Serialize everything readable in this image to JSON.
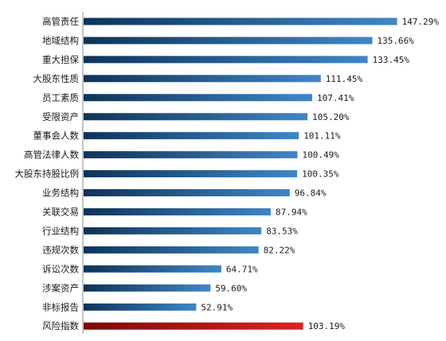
{
  "chart_data": {
    "type": "bar",
    "orientation": "horizontal",
    "categories": [
      "高管责任",
      "地域结构",
      "重大担保",
      "大股东性质",
      "员工素质",
      "受限资产",
      "董事会人数",
      "高管法律人数",
      "大股东持股比例",
      "业务结构",
      "关联交易",
      "行业结构",
      "违规次数",
      "诉讼次数",
      "涉案资产",
      "非标报告",
      "风险指数"
    ],
    "values": [
      147.29,
      135.66,
      133.45,
      111.45,
      107.41,
      105.2,
      101.11,
      100.49,
      100.35,
      96.84,
      87.94,
      83.53,
      82.22,
      64.71,
      59.6,
      52.91,
      103.19
    ],
    "value_labels": [
      "147.29%",
      "135.66%",
      "133.45%",
      "111.45%",
      "107.41%",
      "105.20%",
      "101.11%",
      "100.49%",
      "100.35%",
      "96.84%",
      "87.94%",
      "83.53%",
      "82.22%",
      "64.71%",
      "59.60%",
      "52.91%",
      "103.19%"
    ],
    "unit": "%",
    "xlim": [
      0,
      160
    ],
    "grid": false,
    "legend": "none",
    "colors": {
      "bar_dark": "#0e3358",
      "bar_light": "#3f86c6",
      "highlight_dark": "#7a0a0a",
      "highlight_light": "#e02222",
      "axis": "#8a8a8a"
    },
    "highlight_index": 16
  }
}
